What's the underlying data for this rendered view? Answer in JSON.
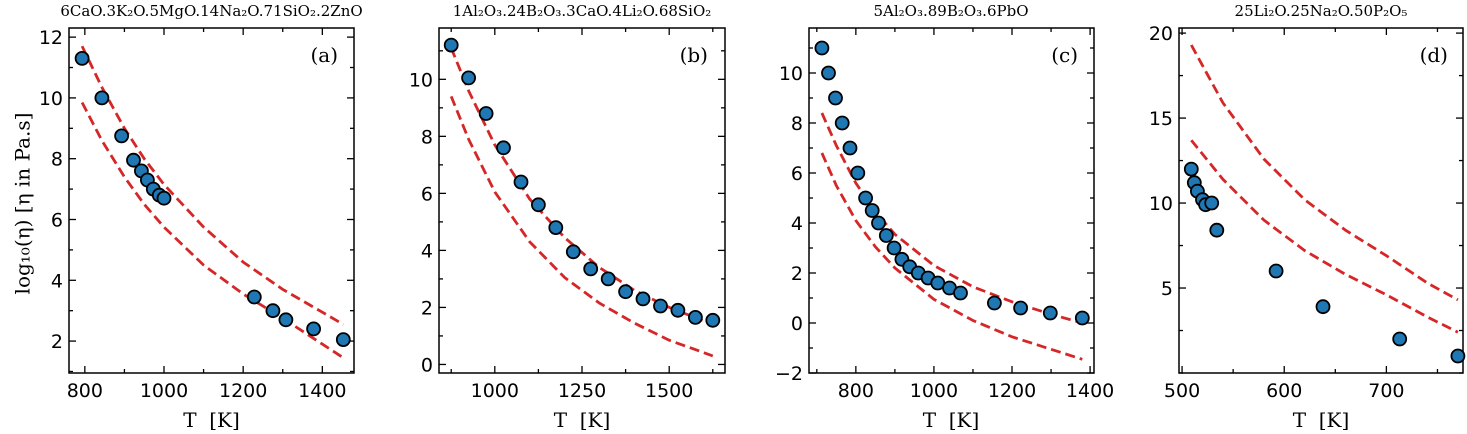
{
  "chart_data": [
    {
      "type": "scatter",
      "title": "6CaO.3K₂O.5MgO.14Na₂O.71SiO₂.2ZnO",
      "panel_label": "(a)",
      "xlabel": "T  [K]",
      "ylabel": "log₁₀(η)  [η in Pa.s]",
      "xlim": [
        760,
        1480
      ],
      "ylim": [
        0.95,
        12.3
      ],
      "xticks": [
        800,
        1000,
        1200,
        1400
      ],
      "yticks": [
        2,
        4,
        6,
        8,
        10,
        12
      ],
      "minor_x": 100,
      "minor_y": 1,
      "points": {
        "x": [
          793,
          843,
          893,
          923,
          943,
          958,
          973,
          988,
          1000,
          1228,
          1275,
          1308,
          1378,
          1453
        ],
        "y": [
          11.3,
          10.0,
          8.75,
          7.95,
          7.6,
          7.3,
          7.0,
          6.8,
          6.7,
          3.45,
          3.0,
          2.7,
          2.4,
          2.05
        ]
      },
      "curves": [
        {
          "x": [
            793,
            843,
            900,
            950,
            1000,
            1100,
            1200,
            1300,
            1400,
            1453
          ],
          "y": [
            11.7,
            10.35,
            9.0,
            8.0,
            7.15,
            5.75,
            4.6,
            3.7,
            2.95,
            2.55
          ]
        },
        {
          "x": [
            793,
            843,
            900,
            950,
            1000,
            1100,
            1200,
            1300,
            1400,
            1453
          ],
          "y": [
            9.85,
            8.6,
            7.4,
            6.5,
            5.75,
            4.5,
            3.55,
            2.75,
            1.9,
            1.45
          ]
        }
      ]
    },
    {
      "type": "scatter",
      "title": "1Al₂O₃.24B₂O₃.3CaO.4Li₂O.68SiO₂",
      "panel_label": "(b)",
      "xlabel": "T  [K]",
      "ylabel": "",
      "xlim": [
        840,
        1660
      ],
      "ylim": [
        -0.3,
        11.8
      ],
      "xticks": [
        1000,
        1250,
        1500
      ],
      "yticks": [
        0,
        2,
        4,
        6,
        8,
        10
      ],
      "minor_x": 125,
      "minor_y": 1,
      "points": {
        "x": [
          875,
          925,
          975,
          1025,
          1075,
          1125,
          1175,
          1225,
          1275,
          1325,
          1375,
          1425,
          1475,
          1525,
          1575,
          1625
        ],
        "y": [
          11.2,
          10.05,
          8.8,
          7.6,
          6.4,
          5.6,
          4.8,
          3.95,
          3.35,
          3.0,
          2.55,
          2.3,
          2.05,
          1.9,
          1.65,
          1.55
        ]
      },
      "curves": [
        {
          "x": [
            875,
            925,
            1000,
            1100,
            1200,
            1300,
            1400,
            1500,
            1625
          ],
          "y": [
            11.1,
            9.6,
            7.7,
            5.8,
            4.45,
            3.4,
            2.6,
            2.0,
            1.4
          ]
        },
        {
          "x": [
            875,
            925,
            1000,
            1100,
            1200,
            1300,
            1400,
            1500,
            1625
          ],
          "y": [
            9.4,
            7.9,
            6.05,
            4.3,
            3.05,
            2.15,
            1.45,
            0.85,
            0.3
          ]
        }
      ]
    },
    {
      "type": "scatter",
      "title": "5Al₂O₃.89B₂O₃.6PbO",
      "panel_label": "(c)",
      "xlabel": "T  [K]",
      "ylabel": "",
      "xlim": [
        680,
        1410
      ],
      "ylim": [
        -2.0,
        11.8
      ],
      "xticks": [
        800,
        1000,
        1200,
        1400
      ],
      "yticks": [
        -2,
        0,
        2,
        4,
        6,
        8,
        10
      ],
      "minor_x": 100,
      "minor_y": 1,
      "points": {
        "x": [
          713,
          730,
          748,
          765,
          785,
          805,
          825,
          842,
          858,
          878,
          898,
          918,
          938,
          960,
          985,
          1010,
          1040,
          1068,
          1155,
          1222,
          1298,
          1380
        ],
        "y": [
          11.0,
          10.0,
          9.0,
          8.0,
          7.0,
          6.0,
          5.0,
          4.5,
          4.0,
          3.5,
          3.0,
          2.55,
          2.25,
          2.0,
          1.8,
          1.6,
          1.4,
          1.2,
          0.8,
          0.6,
          0.4,
          0.2
        ]
      },
      "curves": [
        {
          "x": [
            713,
            750,
            800,
            850,
            900,
            1000,
            1100,
            1200,
            1300,
            1380
          ],
          "y": [
            8.4,
            7.1,
            5.6,
            4.45,
            3.55,
            2.3,
            1.45,
            0.85,
            0.35,
            0.0
          ]
        },
        {
          "x": [
            713,
            750,
            800,
            850,
            900,
            1000,
            1100,
            1200,
            1300,
            1380
          ],
          "y": [
            6.8,
            5.5,
            4.1,
            3.05,
            2.2,
            0.95,
            0.1,
            -0.55,
            -1.05,
            -1.45
          ]
        }
      ]
    },
    {
      "type": "scatter",
      "title": "25Li₂O.25Na₂O.50P₂O₅",
      "panel_label": "(d)",
      "xlabel": "T  [K]",
      "ylabel": "",
      "xlim": [
        497,
        775
      ],
      "ylim": [
        0.0,
        20.3
      ],
      "xticks": [
        500,
        600,
        700
      ],
      "yticks": [
        5,
        10,
        15,
        20
      ],
      "minor_x": 50,
      "minor_y": 2.5,
      "points": {
        "x": [
          509,
          512,
          515,
          520,
          523,
          529,
          534,
          592,
          638,
          713,
          770
        ],
        "y": [
          12.0,
          11.2,
          10.7,
          10.2,
          9.9,
          10.0,
          8.4,
          6.0,
          3.9,
          2.0,
          1.0
        ]
      },
      "curves": [
        {
          "x": [
            509,
            540,
            580,
            620,
            660,
            700,
            740,
            770
          ],
          "y": [
            19.3,
            15.9,
            12.6,
            10.2,
            8.4,
            6.9,
            5.3,
            4.3
          ]
        },
        {
          "x": [
            509,
            540,
            580,
            620,
            660,
            700,
            740,
            770
          ],
          "y": [
            13.7,
            11.4,
            9.0,
            7.2,
            5.8,
            4.6,
            3.3,
            2.4
          ]
        }
      ]
    }
  ]
}
